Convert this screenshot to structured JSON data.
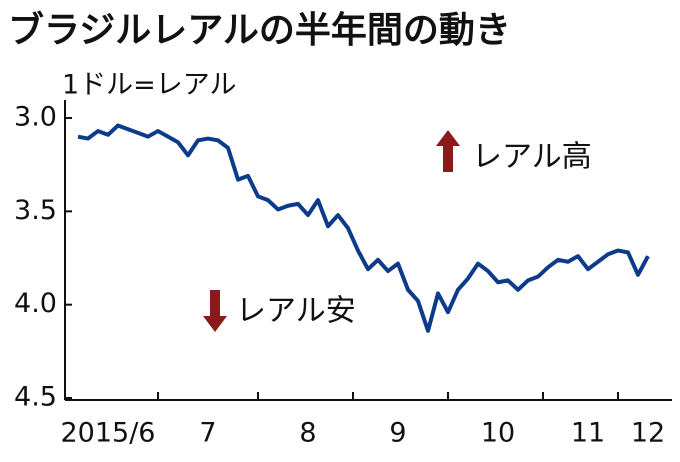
{
  "chart_data": {
    "type": "line",
    "title": "ブラジルレアルの半年間の動き",
    "y_label": "1ドル=レアル",
    "annotations": [
      "レアル高",
      "レアル安"
    ],
    "categories": [
      null,
      null,
      null,
      "2015/6",
      null,
      null,
      null,
      null,
      null,
      null,
      null,
      null,
      null,
      "7",
      null,
      null,
      null,
      null,
      null,
      null,
      null,
      null,
      null,
      "8",
      null,
      null,
      null,
      null,
      null,
      null,
      null,
      null,
      "9",
      null,
      null,
      null,
      null,
      null,
      null,
      null,
      null,
      null,
      "10",
      null,
      null,
      null,
      null,
      null,
      null,
      null,
      null,
      "11",
      null,
      null,
      null,
      null,
      null,
      "12"
    ],
    "series": [
      {
        "color": "#0d3b8c",
        "values": [
          3.1,
          3.11,
          3.07,
          3.09,
          3.04,
          3.06,
          3.08,
          3.1,
          3.07,
          3.1,
          3.13,
          3.2,
          3.12,
          3.11,
          3.12,
          3.16,
          3.33,
          3.31,
          3.42,
          3.44,
          3.49,
          3.47,
          3.46,
          3.52,
          3.44,
          3.58,
          3.52,
          3.59,
          3.71,
          3.81,
          3.76,
          3.82,
          3.78,
          3.92,
          3.98,
          4.14,
          3.94,
          4.04,
          3.92,
          3.86,
          3.78,
          3.82,
          3.88,
          3.87,
          3.92,
          3.87,
          3.85,
          3.8,
          3.76,
          3.77,
          3.74,
          3.81,
          3.77,
          3.73,
          3.71,
          3.72,
          3.84,
          3.74
        ]
      }
    ],
    "ylim": [
      3.0,
      4.5
    ],
    "yticks": [
      {
        "value": 3,
        "label": "3.0"
      },
      3.5,
      {
        "value": 4,
        "label": "4.0"
      },
      4.5
    ],
    "y_inverted": true
  }
}
